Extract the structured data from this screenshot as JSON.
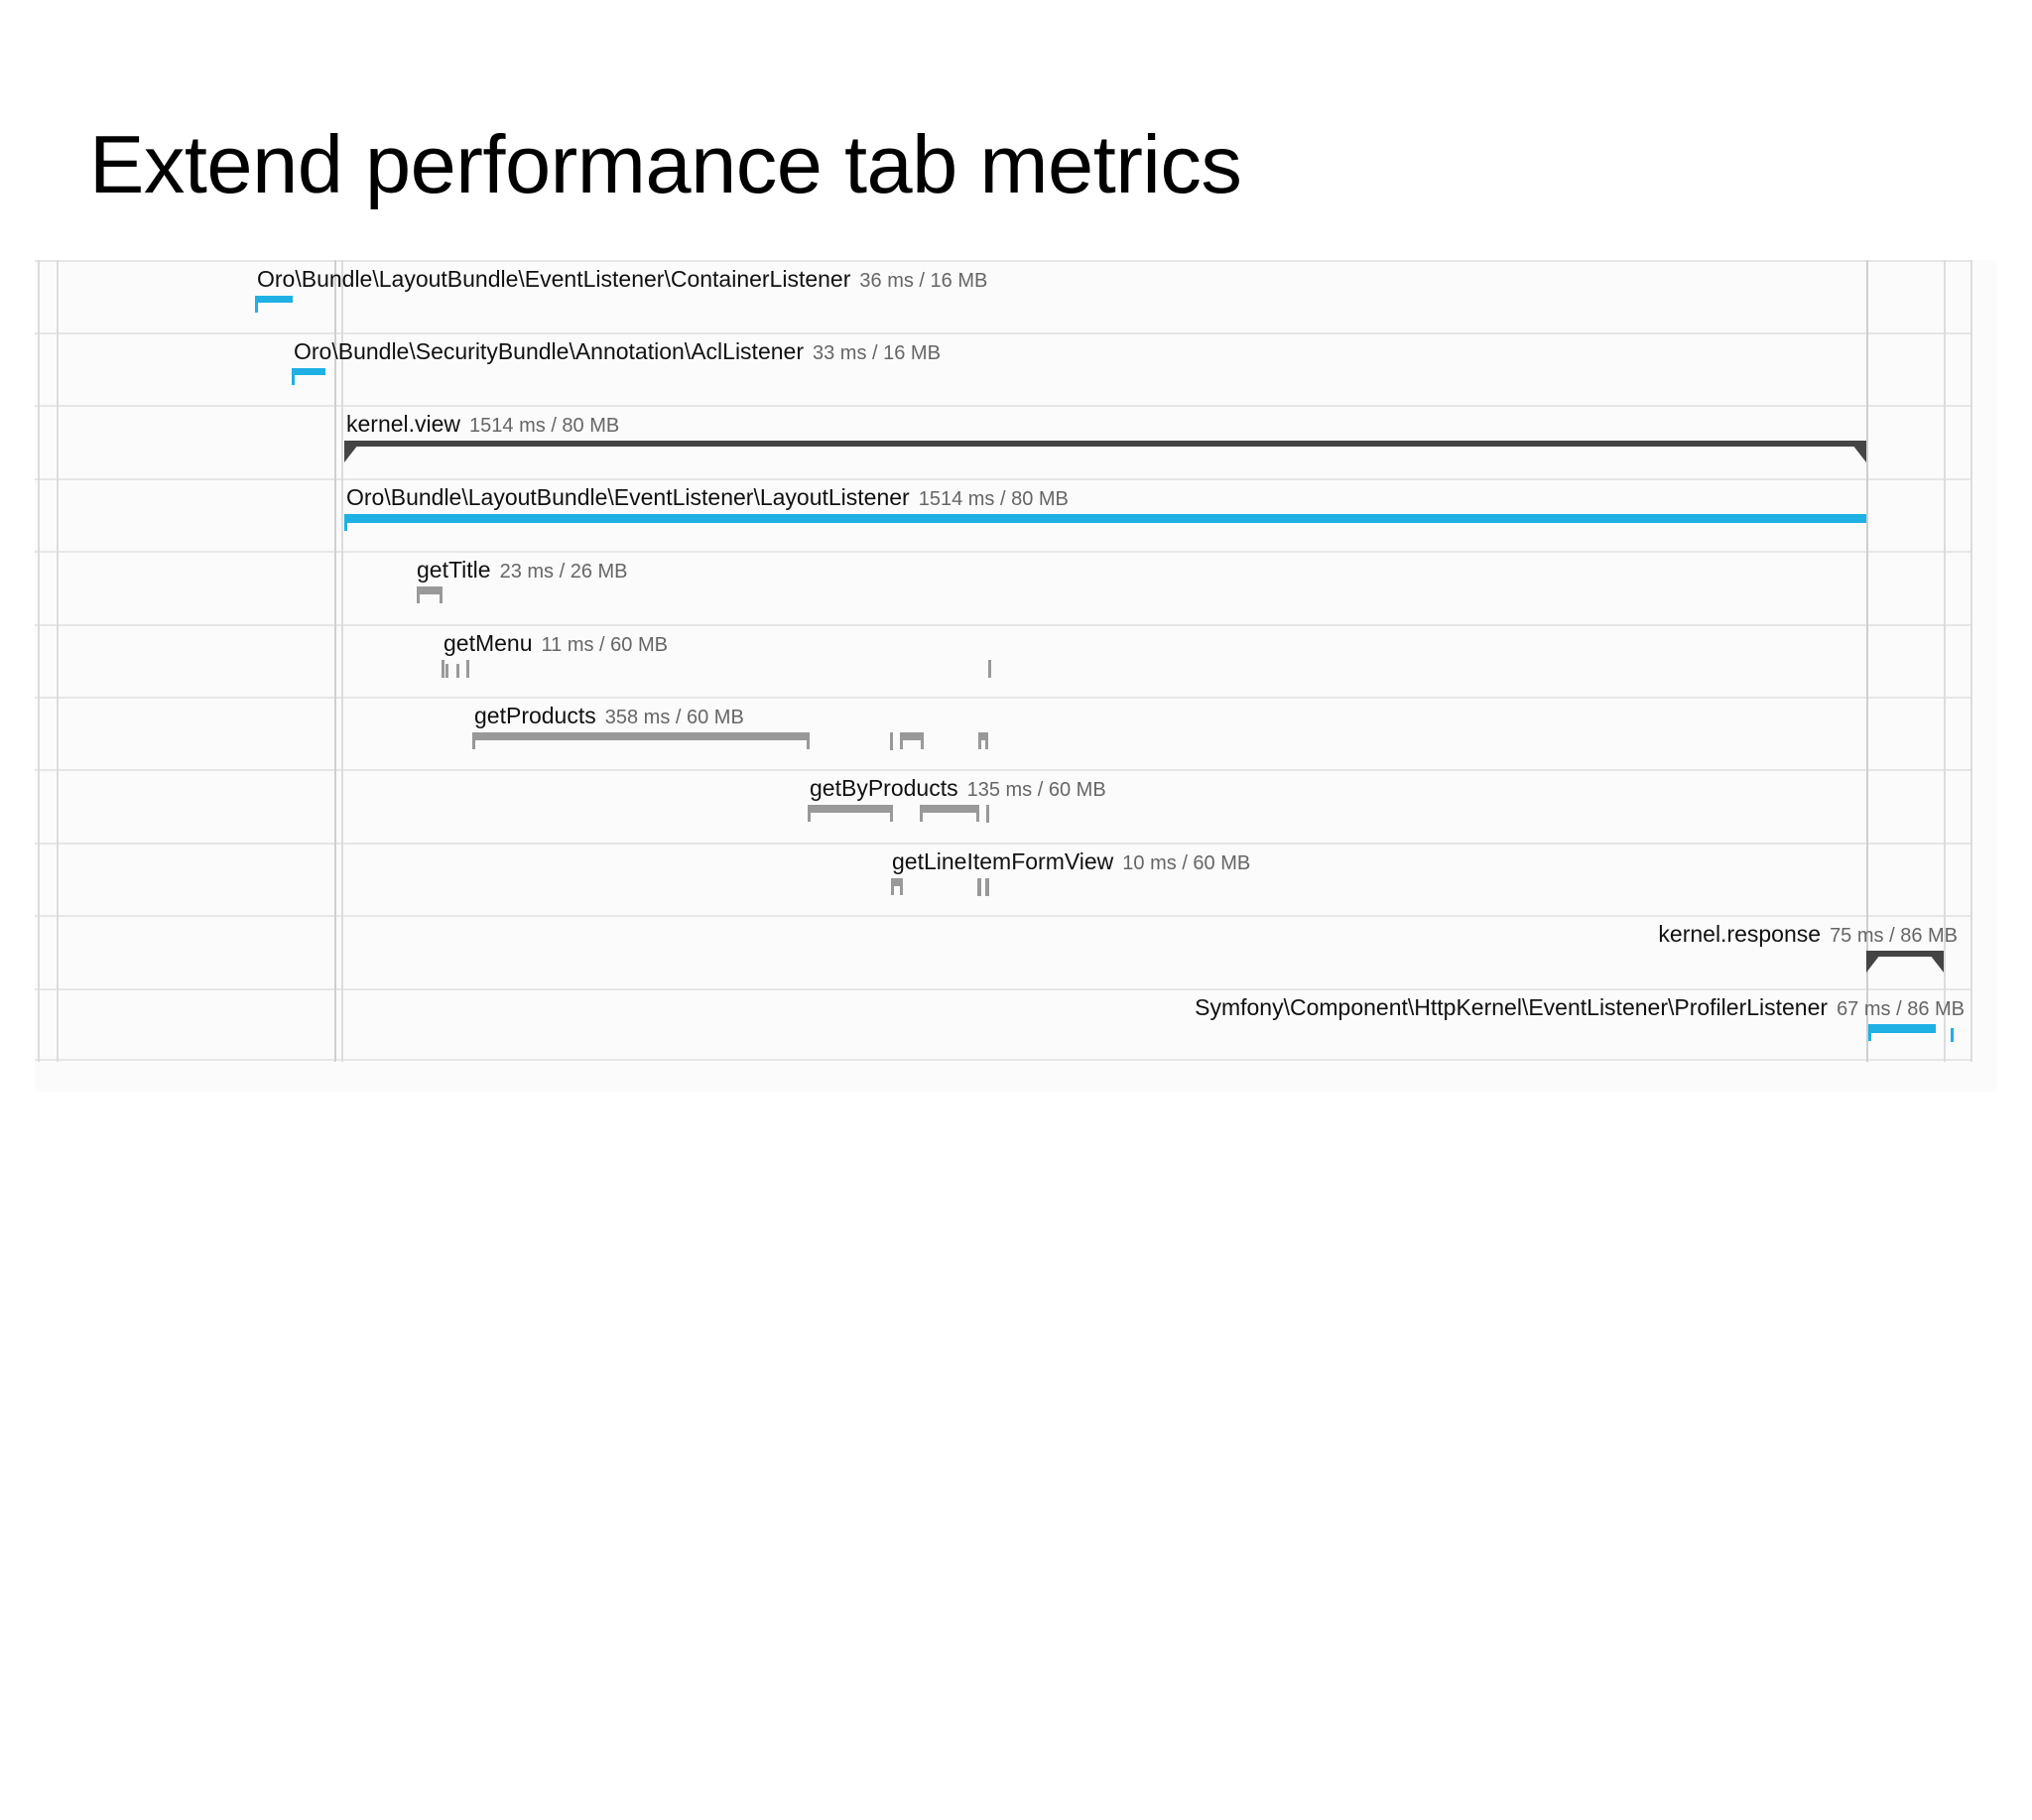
{
  "slide": {
    "title": "Extend performance tab metrics"
  },
  "colors": {
    "blue_bar": "#1fb0e4",
    "gray_bar": "#999999",
    "dark_bar": "#444444",
    "grid": "#e6e6e6"
  },
  "events": [
    {
      "name": "Oro\\Bundle\\LayoutBundle\\EventListener\\ContainerListener",
      "meta": "36 ms / 16 MB"
    },
    {
      "name": "Oro\\Bundle\\SecurityBundle\\Annotation\\AclListener",
      "meta": "33 ms / 16 MB"
    },
    {
      "name": "kernel.view",
      "meta": "1514 ms / 80 MB"
    },
    {
      "name": "Oro\\Bundle\\LayoutBundle\\EventListener\\LayoutListener",
      "meta": "1514 ms / 80 MB"
    },
    {
      "name": "getTitle",
      "meta": "23 ms / 26 MB"
    },
    {
      "name": "getMenu",
      "meta": "11 ms / 60 MB"
    },
    {
      "name": "getProducts",
      "meta": "358 ms / 60 MB"
    },
    {
      "name": "getByProducts",
      "meta": "135 ms / 60 MB"
    },
    {
      "name": "getLineItemFormView",
      "meta": "10 ms / 60 MB"
    },
    {
      "name": "kernel.response",
      "meta": "75 ms / 86 MB"
    },
    {
      "name": "Symfony\\Component\\HttpKernel\\EventListener\\ProfilerListener",
      "meta": "67 ms / 86 MB"
    }
  ]
}
